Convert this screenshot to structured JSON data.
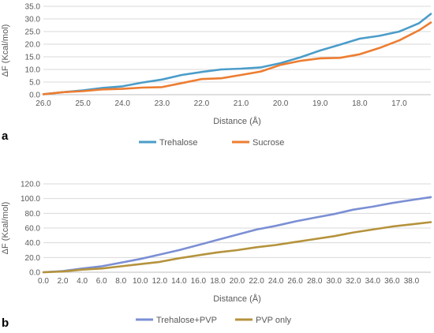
{
  "chart_data": [
    {
      "type": "line",
      "panel_label": "a",
      "xlabel": "Distance (Å)",
      "ylabel": "ΔF  (Kcal/mol)",
      "x_reversed": true,
      "xlim": [
        26.0,
        16.2
      ],
      "ylim": [
        0,
        35
      ],
      "yticks": [
        "0.0",
        "5.0",
        "10.0",
        "15.0",
        "20.0",
        "25.0",
        "30.0",
        "35.0"
      ],
      "xticks": [
        "26.0",
        "25.0",
        "24.0",
        "23.0",
        "22.0",
        "21.0",
        "20.0",
        "19.0",
        "18.0",
        "17.0"
      ],
      "grid": "horizontal",
      "legend_position": "bottom",
      "series": [
        {
          "name": "Trehalose",
          "color": "#4b9cc9",
          "x": [
            26.0,
            25.5,
            25.0,
            24.5,
            24.0,
            23.5,
            23.0,
            22.5,
            22.0,
            21.5,
            21.0,
            20.5,
            20.0,
            19.5,
            19.0,
            18.5,
            18.0,
            17.5,
            17.0,
            16.5,
            16.2
          ],
          "y": [
            0.2,
            1.0,
            1.7,
            2.7,
            3.3,
            4.8,
            6.0,
            7.8,
            9.0,
            10.0,
            10.3,
            10.8,
            12.5,
            14.8,
            17.5,
            19.8,
            22.2,
            23.3,
            25.0,
            28.3,
            32.0
          ]
        },
        {
          "name": "Sucrose",
          "color": "#ed7d31",
          "x": [
            26.0,
            25.5,
            25.0,
            24.5,
            24.0,
            23.5,
            23.0,
            22.5,
            22.0,
            21.5,
            21.0,
            20.5,
            20.0,
            19.5,
            19.0,
            18.5,
            18.0,
            17.5,
            17.0,
            16.5,
            16.2
          ],
          "y": [
            0.2,
            1.0,
            1.4,
            2.1,
            2.3,
            2.8,
            3.0,
            4.6,
            6.2,
            6.5,
            7.8,
            9.2,
            11.8,
            13.4,
            14.4,
            14.6,
            16.0,
            18.5,
            21.5,
            25.5,
            28.6
          ]
        }
      ]
    },
    {
      "type": "line",
      "panel_label": "b",
      "xlabel": "Distance (Å)",
      "ylabel": "ΔF  (Kcal/mol)",
      "xlim": [
        0.0,
        40.0
      ],
      "ylim": [
        0,
        120
      ],
      "yticks": [
        "0.0",
        "20.0",
        "40.0",
        "60.0",
        "80.0",
        "100.0",
        "120.0"
      ],
      "xticks": [
        "0.0",
        "2.0",
        "4.0",
        "6.0",
        "8.0",
        "10.0",
        "12.0",
        "14.0",
        "16.0",
        "18.0",
        "20.0",
        "22.0",
        "24.0",
        "26.0",
        "28.0",
        "30.0",
        "32.0",
        "34.0",
        "36.0",
        "38.0"
      ],
      "grid": "horizontal",
      "legend_position": "bottom",
      "series": [
        {
          "name": "Trehalose+PVP",
          "color": "#7b8fd4",
          "x": [
            0,
            2,
            4,
            6,
            8,
            10,
            12,
            14,
            16,
            18,
            20,
            22,
            24,
            26,
            28,
            30,
            32,
            34,
            36,
            38,
            40
          ],
          "y": [
            0.0,
            1.5,
            5.0,
            8.0,
            13.0,
            18.0,
            24.0,
            30.0,
            37.0,
            44.0,
            51.0,
            58.0,
            63.0,
            69.0,
            74.0,
            79.0,
            85.0,
            89.0,
            94.0,
            98.0,
            102.0
          ]
        },
        {
          "name": "PVP only",
          "color": "#b5933c",
          "x": [
            0,
            2,
            4,
            6,
            8,
            10,
            12,
            14,
            16,
            18,
            20,
            22,
            24,
            26,
            28,
            30,
            32,
            34,
            36,
            38,
            40
          ],
          "y": [
            0.0,
            1.0,
            3.5,
            5.0,
            8.0,
            11.0,
            14.0,
            19.0,
            23.0,
            27.0,
            30.0,
            34.0,
            37.0,
            41.0,
            45.0,
            49.0,
            54.0,
            58.0,
            62.0,
            65.0,
            68.0
          ]
        }
      ]
    }
  ]
}
